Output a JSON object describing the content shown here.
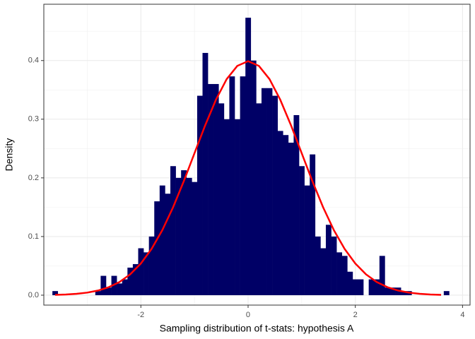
{
  "chart_data": {
    "type": "histogram",
    "x_label": "Sampling distribution of t-stats: hypothesis A",
    "y_label": "Density",
    "bins": [
      -3.65,
      -3.55,
      -3.45,
      -3.35,
      -3.25,
      -3.15,
      -3.05,
      -2.95,
      -2.85,
      -2.75,
      -2.65,
      -2.55,
      -2.45,
      -2.35,
      -2.25,
      -2.15,
      -2.05,
      -1.95,
      -1.85,
      -1.75,
      -1.65,
      -1.55,
      -1.45,
      -1.35,
      -1.25,
      -1.15,
      -1.05,
      -0.95,
      -0.85,
      -0.75,
      -0.65,
      -0.55,
      -0.45,
      -0.35,
      -0.25,
      -0.15,
      -0.05,
      0.05,
      0.15,
      0.25,
      0.35,
      0.45,
      0.55,
      0.65,
      0.75,
      0.85,
      0.95,
      1.05,
      1.15,
      1.25,
      1.35,
      1.45,
      1.55,
      1.65,
      1.75,
      1.85,
      1.95,
      2.05,
      2.15,
      2.25,
      2.35,
      2.45,
      2.55,
      2.65,
      2.75,
      2.85,
      2.95,
      3.05,
      3.15,
      3.25,
      3.35,
      3.45,
      3.55,
      3.65,
      3.75
    ],
    "values": [
      0.007,
      0,
      0,
      0,
      0,
      0,
      0,
      0,
      0.007,
      0.033,
      0.013,
      0.033,
      0.02,
      0.027,
      0.047,
      0.053,
      0.08,
      0.073,
      0.1,
      0.16,
      0.187,
      0.173,
      0.22,
      0.2,
      0.213,
      0.2,
      0.193,
      0.34,
      0.413,
      0.36,
      0.36,
      0.327,
      0.3,
      0.373,
      0.3,
      0.373,
      0.473,
      0.4,
      0.327,
      0.353,
      0.353,
      0.34,
      0.28,
      0.273,
      0.26,
      0.307,
      0.22,
      0.187,
      0.24,
      0.1,
      0.08,
      0.12,
      0.1,
      0.073,
      0.067,
      0.04,
      0.027,
      0.027,
      0,
      0.027,
      0.027,
      0.067,
      0.013,
      0.013,
      0.013,
      0.007,
      0.007,
      0,
      0,
      0,
      0,
      0,
      0,
      0.007
    ],
    "color": "#000066",
    "curve": {
      "color": "#ff0000",
      "x": [
        -3.6,
        -3.4,
        -3.2,
        -3.0,
        -2.8,
        -2.6,
        -2.4,
        -2.2,
        -2.0,
        -1.8,
        -1.6,
        -1.4,
        -1.2,
        -1.0,
        -0.8,
        -0.6,
        -0.4,
        -0.2,
        0,
        0.2,
        0.4,
        0.6,
        0.8,
        1.0,
        1.2,
        1.4,
        1.6,
        1.8,
        2.0,
        2.2,
        2.4,
        2.6,
        2.8,
        3.0,
        3.2,
        3.4,
        3.6
      ],
      "values": [
        0.0006,
        0.0012,
        0.0024,
        0.0044,
        0.0079,
        0.0136,
        0.0224,
        0.0355,
        0.054,
        0.079,
        0.1109,
        0.1497,
        0.1942,
        0.242,
        0.2897,
        0.3332,
        0.3683,
        0.391,
        0.3989,
        0.391,
        0.3683,
        0.3332,
        0.2897,
        0.242,
        0.1942,
        0.1497,
        0.1109,
        0.079,
        0.054,
        0.0355,
        0.0224,
        0.0136,
        0.0079,
        0.0044,
        0.0024,
        0.0012,
        0.0006
      ]
    },
    "xlim": [
      -3.81,
      4.14
    ],
    "ylim": [
      -0.0169,
      0.496
    ],
    "xticks": [
      -2,
      0,
      2,
      4
    ],
    "yticks": [
      {
        "value": 0,
        "label": "0.0"
      },
      0.1,
      0.2,
      0.3,
      0.4
    ],
    "grid": true
  }
}
